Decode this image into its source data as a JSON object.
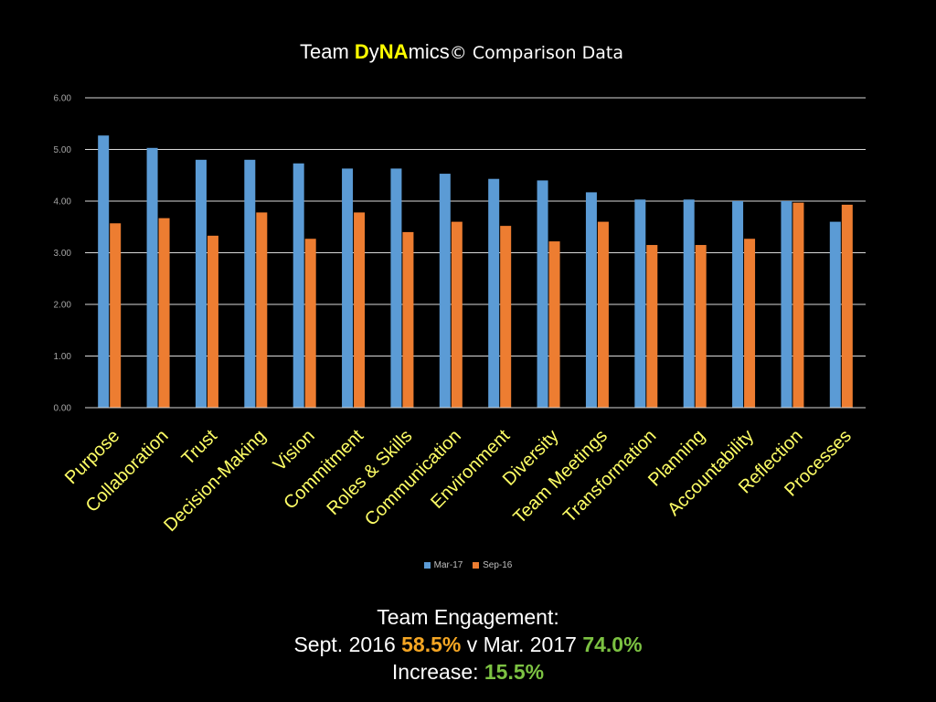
{
  "title": {
    "prefix": "Team ",
    "d": "D",
    "y": "y",
    "na": "NA",
    "mics": "mics",
    "mark": "©",
    "suffix": " Comparison Data"
  },
  "colors": {
    "series_mar17": "#5b9bd5",
    "series_sep16": "#ed7d31",
    "category_label": "#ffff66",
    "highlight": "#ffff00",
    "orange_value": "#f5a623",
    "green_value": "#7cc242"
  },
  "chart_data": {
    "type": "bar",
    "title": "Team DyNAmics© Comparison Data",
    "categories": [
      "Purpose",
      "Collaboration",
      "Trust",
      "Decision-Making",
      "Vision",
      "Commitment",
      "Roles & Skills",
      "Communication",
      "Environment",
      "Diversity",
      "Team Meetings",
      "Transformation",
      "Planning",
      "Accountability",
      "Reflection",
      "Processes"
    ],
    "series": [
      {
        "name": "Mar-17",
        "values": [
          5.27,
          5.03,
          4.8,
          4.8,
          4.73,
          4.63,
          4.63,
          4.53,
          4.43,
          4.4,
          4.17,
          4.03,
          4.03,
          4.0,
          4.0,
          3.6
        ]
      },
      {
        "name": "Sep-16",
        "values": [
          3.57,
          3.67,
          3.33,
          3.78,
          3.27,
          3.78,
          3.4,
          3.6,
          3.52,
          3.22,
          3.6,
          3.15,
          3.15,
          3.27,
          3.97,
          3.93
        ]
      }
    ],
    "ylim": [
      0,
      6
    ],
    "yticks": [
      "0.00",
      "1.00",
      "2.00",
      "3.00",
      "4.00",
      "5.00",
      "6.00"
    ],
    "xlabel": "",
    "ylabel": "",
    "legend": "bottom",
    "grid": true
  },
  "footer": {
    "line1": "Team Engagement:",
    "sept_label": "Sept. 2016 ",
    "sept_value": "58.5%",
    "versus": " v Mar. 2017 ",
    "mar_value": "74.0%",
    "increase_label": "Increase: ",
    "increase_value": "15.5%"
  }
}
